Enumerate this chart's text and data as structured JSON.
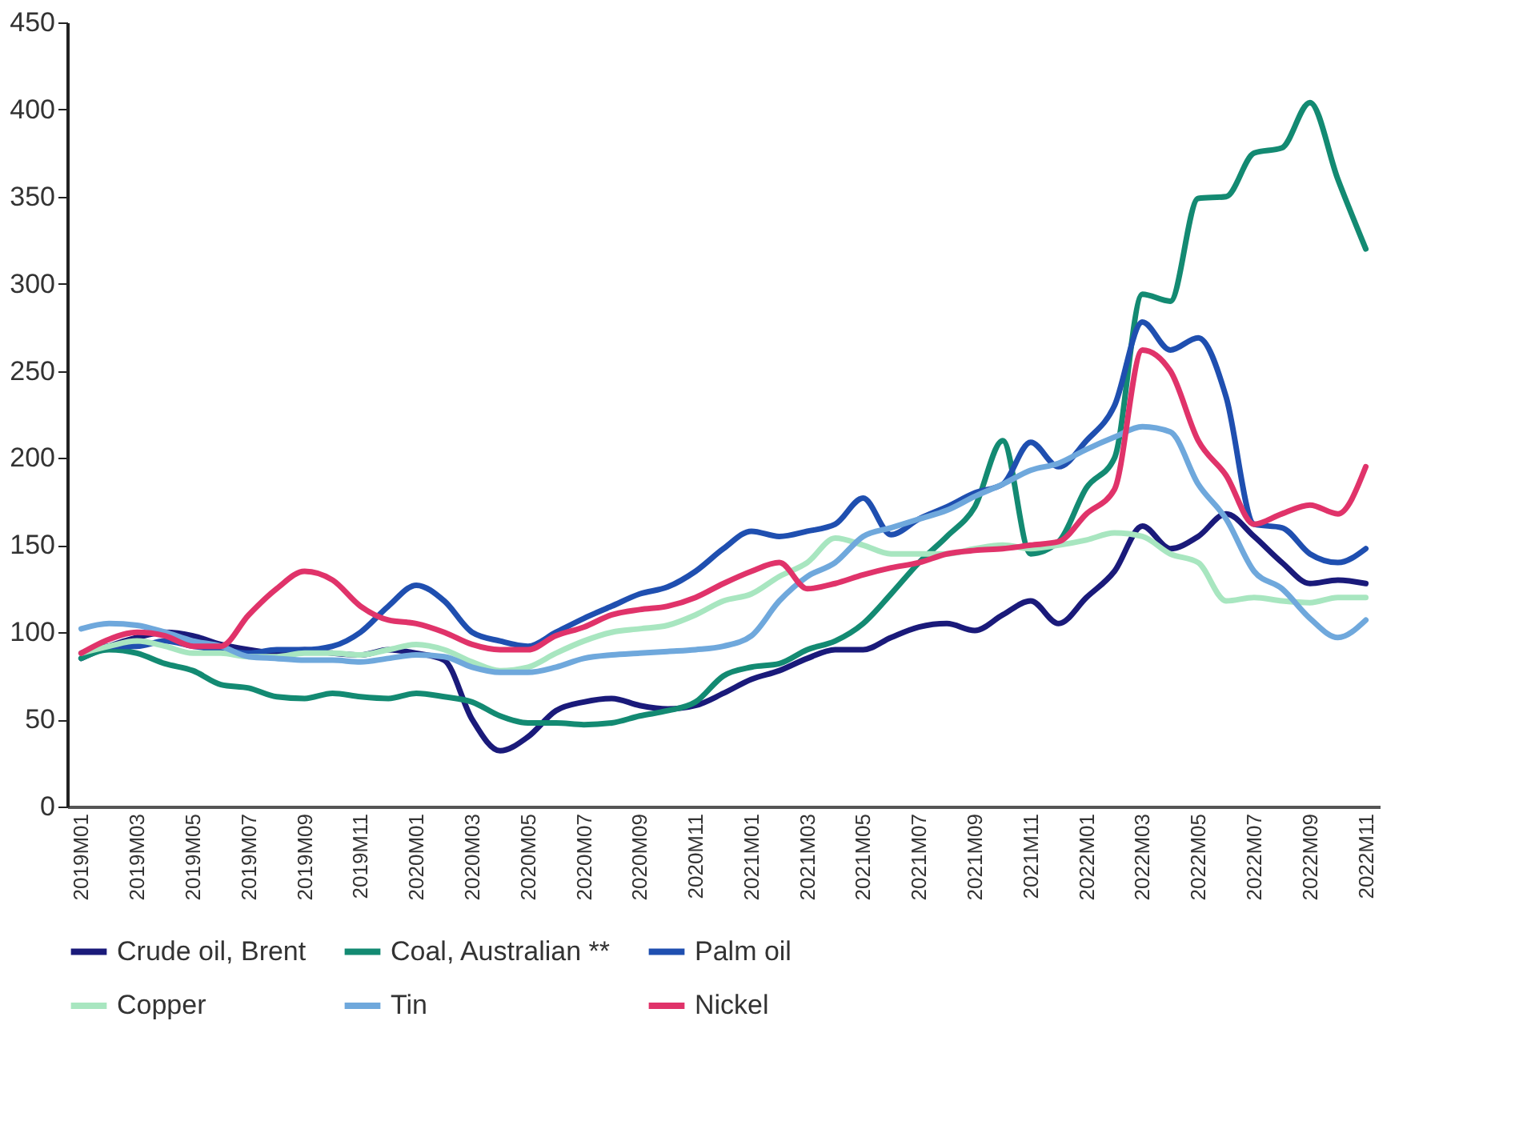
{
  "chart_data": {
    "type": "line",
    "categories": [
      "2019M01",
      null,
      "2019M03",
      null,
      "2019M05",
      null,
      "2019M07",
      null,
      "2019M09",
      null,
      "2019M11",
      null,
      "2020M01",
      null,
      "2020M03",
      null,
      "2020M05",
      null,
      "2020M07",
      null,
      "2020M09",
      null,
      "2020M11",
      null,
      "2021M01",
      null,
      "2021M03",
      null,
      "2021M05",
      null,
      "2021M07",
      null,
      "2021M09",
      null,
      "2021M11",
      null,
      "2022M01",
      null,
      "2022M03",
      null,
      "2022M05",
      null,
      "2022M07",
      null,
      "2022M09",
      null,
      "2022M11"
    ],
    "series": [
      {
        "name": "Crude oil, Brent",
        "color": "#1a1a7a",
        "values": [
          85,
          92,
          97,
          100,
          98,
          93,
          90,
          88,
          90,
          88,
          87,
          90,
          88,
          84,
          50,
          32,
          40,
          55,
          60,
          62,
          58,
          56,
          58,
          65,
          73,
          78,
          85,
          90,
          90,
          97,
          103,
          105,
          101,
          110,
          118,
          105,
          120,
          135,
          161,
          148,
          155,
          168,
          155,
          140,
          128,
          130,
          128
        ]
      },
      {
        "name": "Coal, Australian **",
        "color": "#138a72",
        "values": [
          85,
          90,
          88,
          82,
          78,
          70,
          68,
          63,
          62,
          65,
          63,
          62,
          65,
          63,
          60,
          52,
          48,
          48,
          47,
          48,
          52,
          55,
          60,
          75,
          80,
          82,
          90,
          95,
          105,
          122,
          140,
          155,
          172,
          210,
          145,
          152,
          183,
          200,
          294,
          290,
          349,
          350,
          375,
          378,
          404,
          360,
          320
        ]
      },
      {
        "name": "Palm oil",
        "color": "#1f4fb0",
        "values": [
          88,
          92,
          92,
          95,
          92,
          90,
          88,
          90,
          90,
          92,
          100,
          115,
          127,
          118,
          100,
          95,
          92,
          100,
          108,
          115,
          122,
          126,
          135,
          148,
          158,
          155,
          158,
          162,
          177,
          156,
          165,
          172,
          180,
          185,
          209,
          195,
          210,
          230,
          278,
          262,
          269,
          235,
          162,
          160,
          145,
          140,
          148
        ]
      },
      {
        "name": "Copper",
        "color": "#a8e6c0",
        "values": [
          88,
          92,
          95,
          92,
          88,
          88,
          86,
          86,
          88,
          88,
          87,
          90,
          93,
          90,
          83,
          78,
          80,
          88,
          95,
          100,
          102,
          104,
          110,
          118,
          122,
          132,
          140,
          154,
          150,
          145,
          145,
          145,
          148,
          150,
          148,
          150,
          153,
          157,
          155,
          145,
          140,
          118,
          120,
          118,
          117,
          120,
          120
        ]
      },
      {
        "name": "Tin",
        "color": "#6fa8dc",
        "values": [
          102,
          105,
          104,
          100,
          95,
          92,
          86,
          85,
          84,
          84,
          83,
          85,
          87,
          86,
          80,
          77,
          77,
          80,
          85,
          87,
          88,
          89,
          90,
          92,
          98,
          118,
          132,
          140,
          155,
          160,
          165,
          170,
          178,
          185,
          193,
          197,
          205,
          212,
          218,
          215,
          185,
          165,
          135,
          125,
          108,
          97,
          107
        ]
      },
      {
        "name": "Nickel",
        "color": "#e0336a",
        "values": [
          88,
          96,
          100,
          98,
          92,
          92,
          110,
          125,
          135,
          130,
          115,
          107,
          105,
          100,
          93,
          90,
          90,
          98,
          103,
          110,
          113,
          115,
          120,
          128,
          135,
          140,
          125,
          128,
          133,
          137,
          140,
          145,
          147,
          148,
          150,
          152,
          168,
          182,
          262,
          250,
          210,
          190,
          162,
          168,
          173,
          168,
          195
        ]
      }
    ],
    "ylim": [
      0,
      450
    ],
    "yticks": [
      0,
      50,
      100,
      150,
      200,
      250,
      300,
      350,
      400,
      450
    ],
    "grid": false,
    "legend": "bottom",
    "line_style": "solid",
    "marker": "none"
  }
}
